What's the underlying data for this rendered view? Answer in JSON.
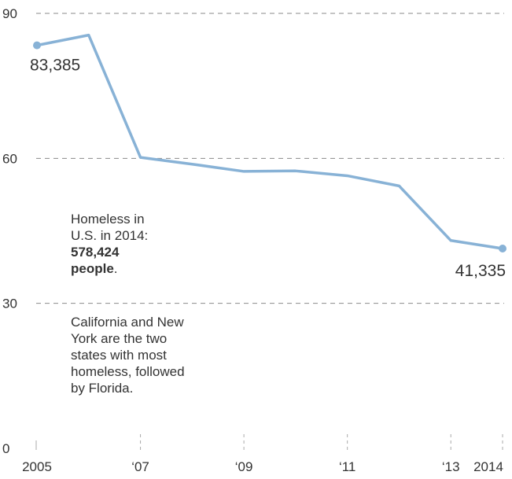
{
  "chart_data": {
    "type": "line",
    "x": [
      2005,
      2006,
      2007,
      2008,
      2009,
      2010,
      2011,
      2012,
      2013,
      2014
    ],
    "series": [
      {
        "values": [
          83.385,
          85.5,
          60.2,
          58.8,
          57.3,
          57.4,
          56.4,
          54.3,
          43.0,
          41.335
        ],
        "color": "#88b2d6"
      }
    ],
    "ylim": [
      0,
      90
    ],
    "yticks": [
      0,
      30,
      60,
      90
    ],
    "xticks": [
      {
        "x": 2005,
        "label": "2005"
      },
      {
        "x": 2007,
        "label": "‘07"
      },
      {
        "x": 2009,
        "label": "‘09"
      },
      {
        "x": 2011,
        "label": "‘11"
      },
      {
        "x": 2013,
        "label": "‘13"
      },
      {
        "x": 2014,
        "label": "2014"
      }
    ],
    "endpoint_labels": {
      "start": "83,385",
      "end": "41,335"
    },
    "grid": true,
    "annotation": {
      "line1": "Homeless in",
      "line2": "U.S. in 2014:",
      "bold1": "578,424",
      "bold2": "people",
      "suffix": ".",
      "body_lines": [
        "California and New",
        "York are the two",
        "states with most",
        "homeless, followed",
        "by Florida."
      ]
    }
  }
}
